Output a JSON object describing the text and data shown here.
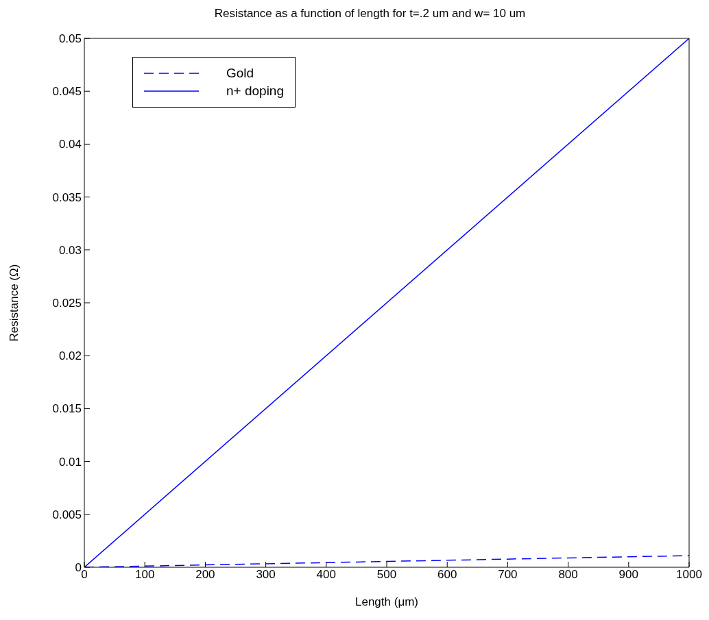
{
  "chart_data": {
    "type": "line",
    "title": "Resistance as a function of length for t=.2 um and w= 10 um",
    "xlabel": "Length (μm)",
    "ylabel": "Resistance (Ω)",
    "x": [
      0,
      1000
    ],
    "series": [
      {
        "name": "Gold",
        "color": "#0000ff",
        "line_style": "dashed",
        "values": [
          0,
          0.0011
        ]
      },
      {
        "name": "n+ doping",
        "color": "#0000ff",
        "line_style": "solid",
        "values": [
          0,
          0.05
        ]
      }
    ],
    "xlim": [
      0,
      1000
    ],
    "xticks": [
      0,
      100,
      200,
      300,
      400,
      500,
      600,
      700,
      800,
      900,
      1000
    ],
    "ylim": [
      0,
      0.05
    ],
    "yticks": [
      0,
      0.005,
      0.01,
      0.015,
      0.02,
      0.025,
      0.03,
      0.035,
      0.04,
      0.045,
      0.05
    ],
    "legend": "top left",
    "grid": false,
    "marker": "none"
  }
}
